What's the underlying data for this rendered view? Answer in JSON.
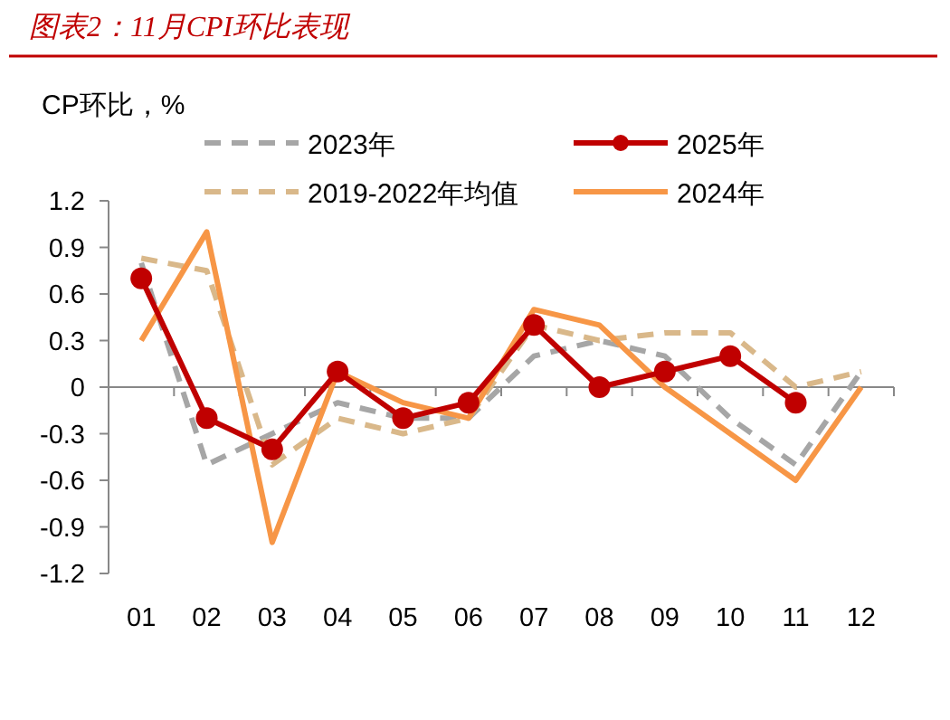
{
  "chart_data": {
    "type": "line",
    "title": "图表2：11月CPI环比表现",
    "ylabel": "CP环比，%",
    "categories": [
      "01",
      "02",
      "03",
      "04",
      "05",
      "06",
      "07",
      "08",
      "09",
      "10",
      "11",
      "12"
    ],
    "ylim": [
      -1.2,
      1.2
    ],
    "yticks": [
      {
        "value": -1.2,
        "label": "-1.2"
      },
      {
        "value": -0.9,
        "label": "-0.9"
      },
      {
        "value": -0.6,
        "label": "-0.6"
      },
      {
        "value": -0.3,
        "label": "-0.3"
      },
      0,
      {
        "value": 0.3,
        "label": "0.3"
      },
      {
        "value": 0.6,
        "label": "0.6"
      },
      {
        "value": 0.9,
        "label": "0.9"
      },
      {
        "value": 1.2,
        "label": "1.2"
      }
    ],
    "legend": "top",
    "series": [
      {
        "name": "2023年",
        "color": "#a6a6a6",
        "line_style": "dashed",
        "marker": "none",
        "values": [
          0.8,
          -0.5,
          -0.3,
          -0.1,
          -0.2,
          -0.2,
          0.2,
          0.3,
          0.2,
          -0.2,
          -0.5,
          0.1
        ]
      },
      {
        "name": "2025年",
        "color": "#c00000",
        "line_style": "solid",
        "marker": "circle",
        "values": [
          0.7,
          -0.2,
          -0.4,
          0.1,
          -0.2,
          -0.1,
          0.4,
          0,
          0.1,
          0.2,
          -0.1,
          null
        ]
      },
      {
        "name": "2019-2022年均值",
        "color": "#d9b88a",
        "line_style": "dashed",
        "marker": "none",
        "values": [
          0.83,
          0.75,
          -0.5,
          -0.2,
          -0.3,
          -0.2,
          0.4,
          0.3,
          0.35,
          0.35,
          0,
          0.1
        ]
      },
      {
        "name": "2024年",
        "color": "#f79646",
        "line_style": "solid",
        "marker": "none",
        "values": [
          0.3,
          1.0,
          -1.0,
          0.1,
          -0.1,
          -0.2,
          0.5,
          0.4,
          0,
          -0.3,
          -0.6,
          0
        ]
      }
    ]
  }
}
